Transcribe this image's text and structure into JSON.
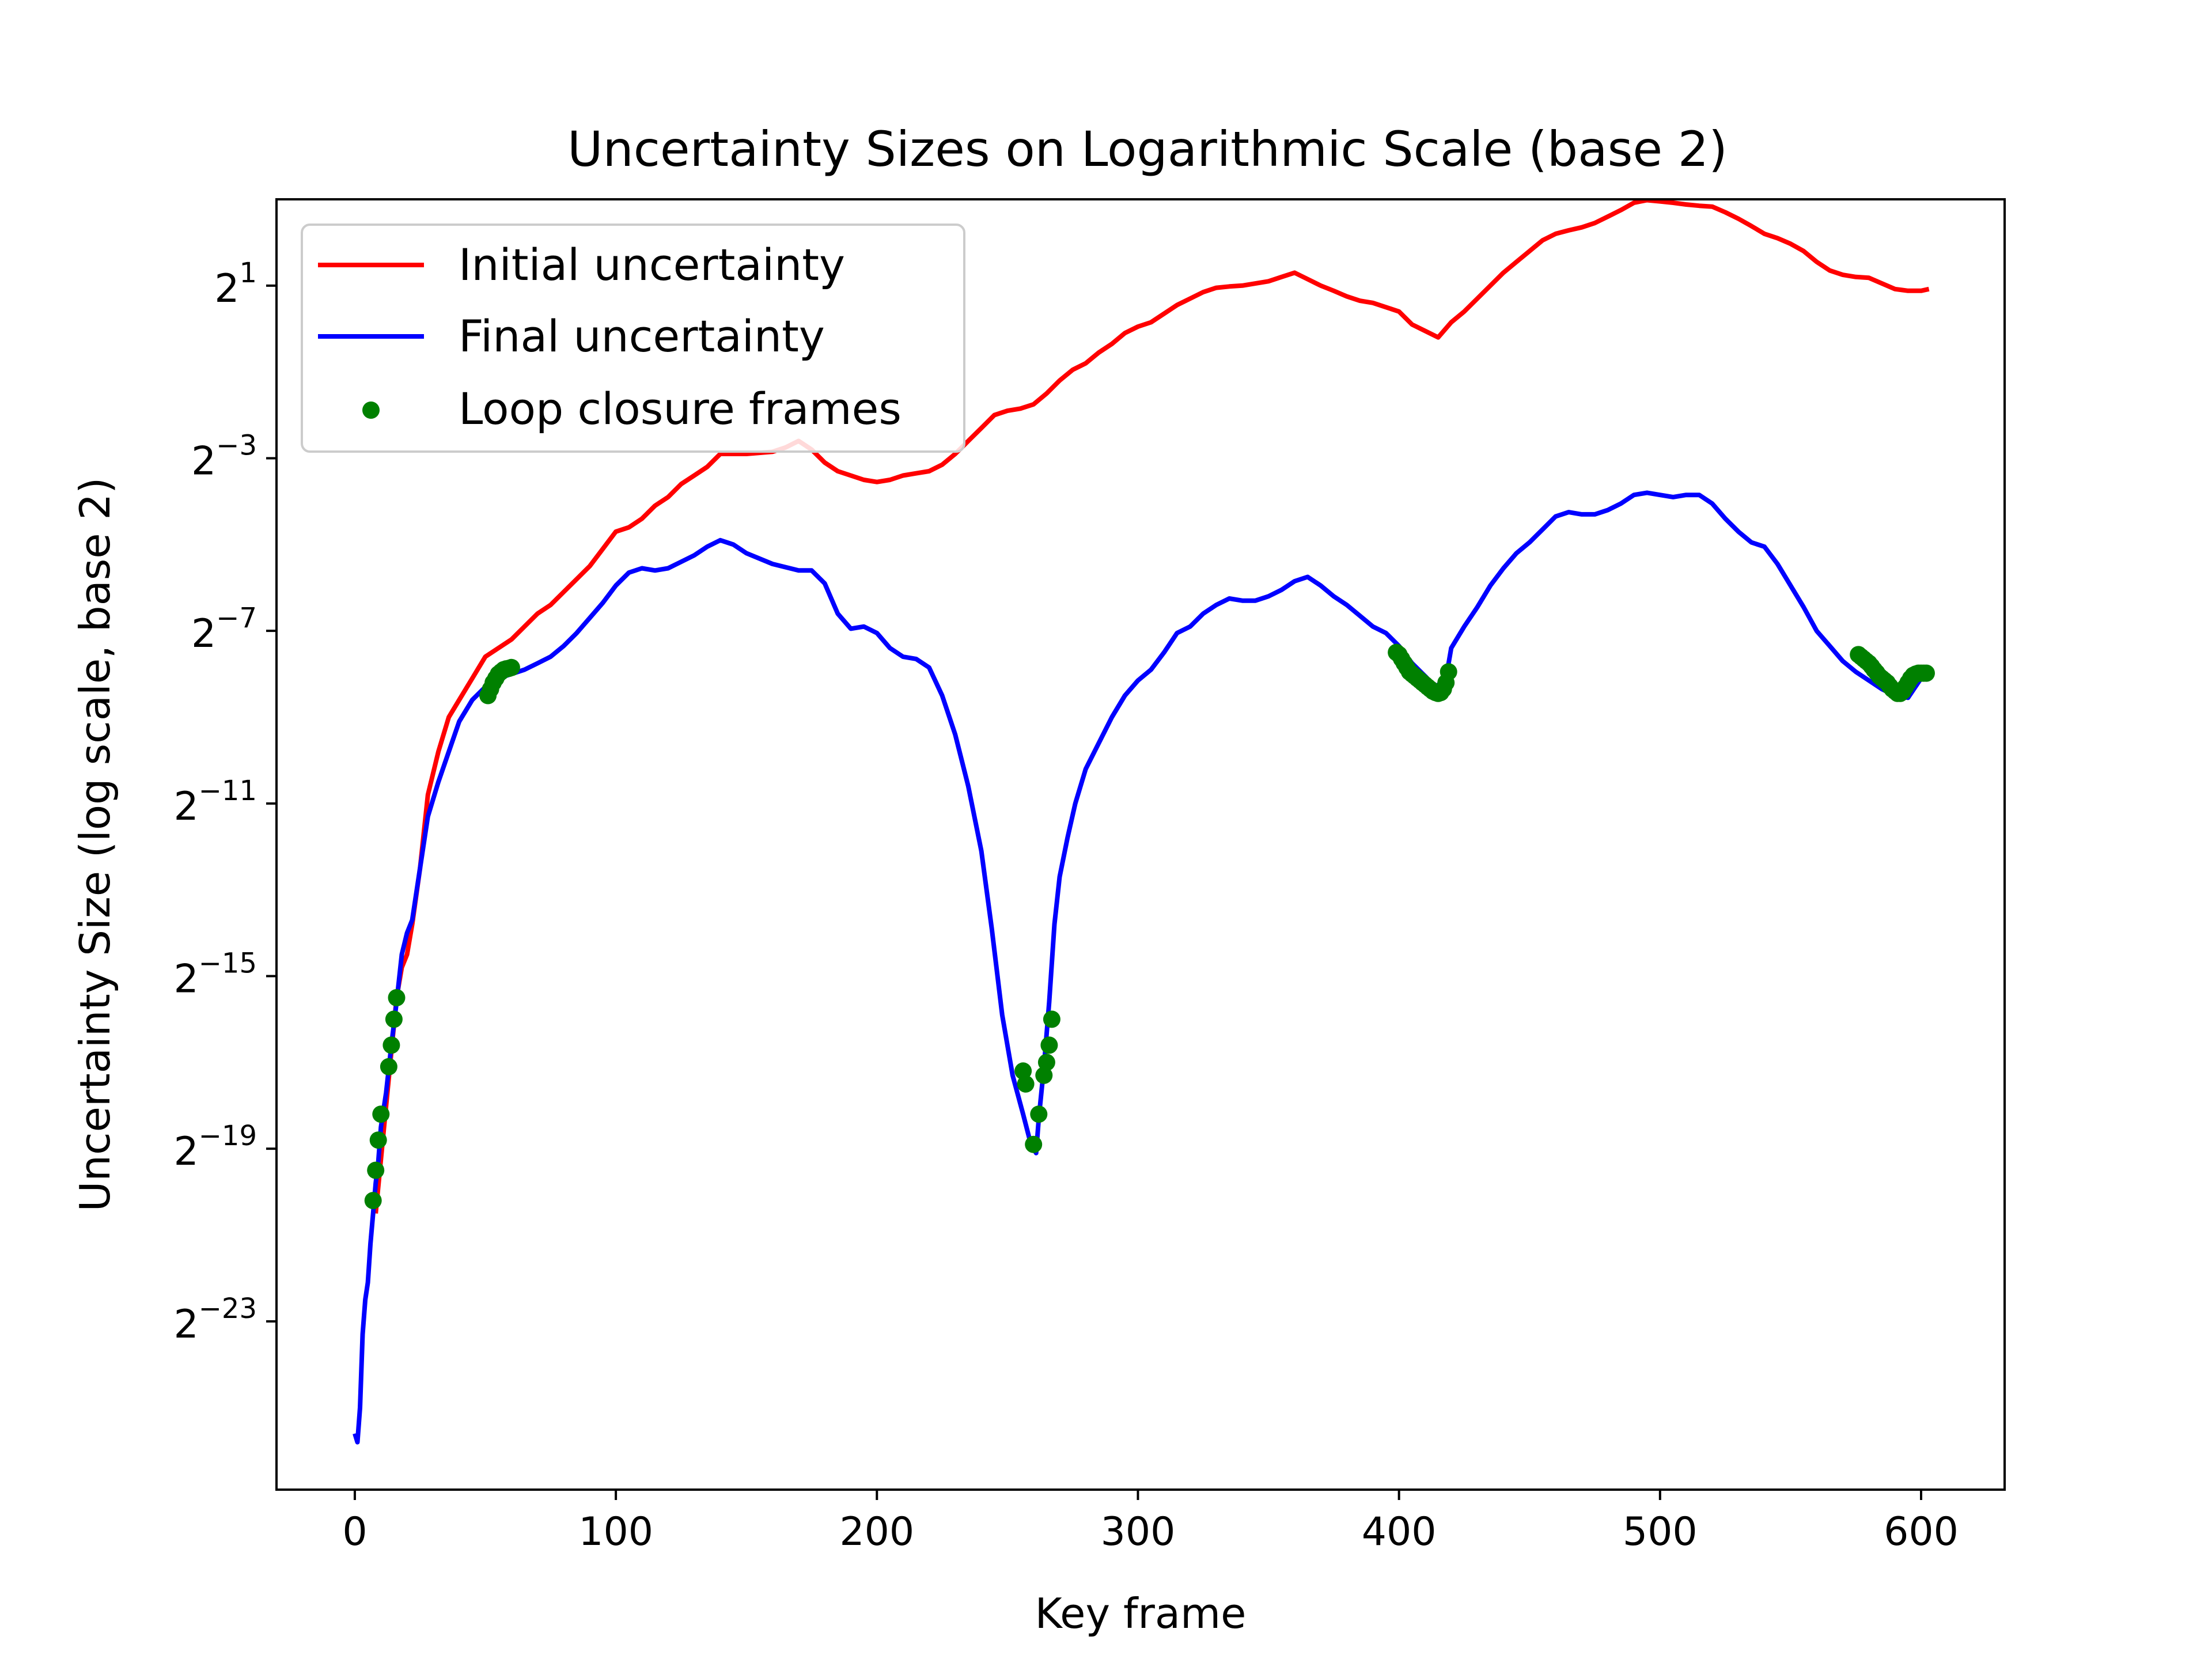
{
  "chart_data": {
    "type": "line",
    "title": "Uncertainty Sizes on Logarithmic Scale (base 2)",
    "xlabel": "Key frame",
    "ylabel": "Uncertainty Size (log scale, base 2)",
    "xlim": [
      -30,
      632
    ],
    "ylim_log2": [
      -26.9,
      3.0
    ],
    "yscale": "log2",
    "xticks": [
      "0",
      "100",
      "200",
      "300",
      "400",
      "500",
      "600"
    ],
    "xtick_values": [
      0,
      100,
      200,
      300,
      400,
      500,
      600
    ],
    "yticks": [
      {
        "base": "2",
        "exp": "1",
        "value": 1
      },
      {
        "base": "2",
        "exp": "−3",
        "value": -3
      },
      {
        "base": "2",
        "exp": "−7",
        "value": -7
      },
      {
        "base": "2",
        "exp": "−11",
        "value": -11
      },
      {
        "base": "2",
        "exp": "−15",
        "value": -15
      },
      {
        "base": "2",
        "exp": "−19",
        "value": -19
      },
      {
        "base": "2",
        "exp": "−23",
        "value": -23
      }
    ],
    "legend_position": "upper-left",
    "series": [
      {
        "name": "Initial uncertainty",
        "color": "#ff0000",
        "marker": "line",
        "x": [
          8,
          12,
          16,
          18,
          20,
          22,
          25,
          28,
          32,
          36,
          40,
          45,
          50,
          55,
          60,
          65,
          70,
          75,
          80,
          85,
          90,
          95,
          100,
          105,
          110,
          115,
          120,
          125,
          130,
          135,
          140,
          150,
          160,
          165,
          170,
          175,
          180,
          185,
          190,
          195,
          200,
          205,
          210,
          215,
          220,
          225,
          230,
          235,
          240,
          245,
          250,
          255,
          260,
          265,
          270,
          275,
          280,
          285,
          290,
          295,
          300,
          305,
          310,
          315,
          320,
          325,
          330,
          335,
          340,
          345,
          350,
          355,
          360,
          365,
          370,
          375,
          380,
          385,
          390,
          395,
          400,
          405,
          410,
          415,
          420,
          425,
          430,
          435,
          440,
          445,
          450,
          455,
          460,
          465,
          470,
          475,
          480,
          485,
          490,
          495,
          500,
          505,
          510,
          515,
          520,
          525,
          530,
          535,
          540,
          545,
          550,
          555,
          560,
          565,
          570,
          575,
          580,
          585,
          590,
          595,
          600,
          603
        ],
        "values": [
          -20.5,
          -18.0,
          -15.5,
          -14.8,
          -14.5,
          -13.8,
          -12.5,
          -10.8,
          -9.8,
          -9.0,
          -8.6,
          -8.1,
          -7.6,
          -7.4,
          -7.2,
          -6.9,
          -6.6,
          -6.4,
          -6.1,
          -5.8,
          -5.5,
          -5.1,
          -4.7,
          -4.6,
          -4.4,
          -4.1,
          -3.9,
          -3.6,
          -3.4,
          -3.2,
          -2.9,
          -2.9,
          -2.85,
          -2.75,
          -2.6,
          -2.8,
          -3.1,
          -3.3,
          -3.4,
          -3.5,
          -3.55,
          -3.5,
          -3.4,
          -3.35,
          -3.3,
          -3.15,
          -2.9,
          -2.6,
          -2.3,
          -2.0,
          -1.9,
          -1.85,
          -1.75,
          -1.5,
          -1.2,
          -0.95,
          -0.8,
          -0.55,
          -0.35,
          -0.1,
          0.05,
          0.15,
          0.35,
          0.55,
          0.7,
          0.85,
          0.95,
          0.98,
          1.0,
          1.05,
          1.1,
          1.2,
          1.3,
          1.15,
          1.0,
          0.88,
          0.75,
          0.65,
          0.6,
          0.5,
          0.4,
          0.1,
          -0.05,
          -0.2,
          0.15,
          0.4,
          0.7,
          1.0,
          1.3,
          1.55,
          1.8,
          2.05,
          2.2,
          2.28,
          2.35,
          2.45,
          2.6,
          2.75,
          2.92,
          2.98,
          2.95,
          2.92,
          2.88,
          2.85,
          2.83,
          2.7,
          2.55,
          2.38,
          2.2,
          2.1,
          1.97,
          1.8,
          1.55,
          1.35,
          1.25,
          1.2,
          1.18,
          1.05,
          0.92,
          0.88,
          0.88,
          0.92
        ]
      },
      {
        "name": "Final uncertainty",
        "color": "#0000ff",
        "marker": "line",
        "x": [
          0,
          1,
          2,
          3,
          4,
          5,
          6,
          7,
          8,
          9,
          10,
          12,
          14,
          16,
          18,
          20,
          22,
          25,
          28,
          32,
          36,
          40,
          45,
          50,
          55,
          60,
          65,
          70,
          75,
          80,
          85,
          90,
          95,
          100,
          105,
          110,
          115,
          120,
          125,
          130,
          135,
          140,
          145,
          150,
          160,
          170,
          175,
          180,
          185,
          190,
          195,
          200,
          205,
          210,
          215,
          220,
          225,
          230,
          235,
          240,
          244,
          248,
          252,
          256,
          259,
          261,
          262,
          264,
          266,
          268,
          270,
          273,
          276,
          280,
          285,
          290,
          295,
          300,
          305,
          310,
          315,
          320,
          325,
          330,
          335,
          340,
          345,
          350,
          355,
          360,
          365,
          370,
          375,
          380,
          385,
          390,
          395,
          400,
          405,
          410,
          414,
          418,
          420,
          425,
          430,
          435,
          440,
          445,
          450,
          455,
          460,
          465,
          470,
          475,
          480,
          485,
          490,
          495,
          500,
          505,
          510,
          515,
          520,
          525,
          530,
          535,
          540,
          545,
          550,
          555,
          560,
          565,
          570,
          575,
          580,
          585,
          590,
          595,
          600,
          603
        ],
        "values": [
          -25.6,
          -25.8,
          -25.0,
          -23.3,
          -22.5,
          -22.1,
          -21.2,
          -20.5,
          -19.8,
          -19.3,
          -18.5,
          -17.7,
          -16.6,
          -15.6,
          -14.5,
          -14.0,
          -13.7,
          -12.5,
          -11.3,
          -10.5,
          -9.8,
          -9.1,
          -8.6,
          -8.3,
          -8.1,
          -8.0,
          -7.9,
          -7.75,
          -7.6,
          -7.35,
          -7.05,
          -6.7,
          -6.35,
          -5.95,
          -5.65,
          -5.55,
          -5.6,
          -5.55,
          -5.4,
          -5.25,
          -5.05,
          -4.9,
          -5.0,
          -5.2,
          -5.45,
          -5.6,
          -5.6,
          -5.9,
          -6.6,
          -6.95,
          -6.9,
          -7.05,
          -7.4,
          -7.6,
          -7.65,
          -7.85,
          -8.5,
          -9.4,
          -10.6,
          -12.1,
          -13.9,
          -15.9,
          -17.3,
          -18.2,
          -18.9,
          -19.1,
          -18.3,
          -17.1,
          -15.6,
          -13.8,
          -12.7,
          -11.8,
          -11.0,
          -10.2,
          -9.6,
          -9.0,
          -8.5,
          -8.15,
          -7.9,
          -7.5,
          -7.05,
          -6.9,
          -6.6,
          -6.4,
          -6.25,
          -6.3,
          -6.3,
          -6.2,
          -6.05,
          -5.85,
          -5.75,
          -5.95,
          -6.2,
          -6.4,
          -6.65,
          -6.9,
          -7.05,
          -7.35,
          -7.75,
          -8.05,
          -8.3,
          -8.1,
          -7.4,
          -6.9,
          -6.45,
          -5.95,
          -5.55,
          -5.2,
          -4.95,
          -4.65,
          -4.35,
          -4.25,
          -4.3,
          -4.3,
          -4.2,
          -4.05,
          -3.85,
          -3.8,
          -3.85,
          -3.9,
          -3.85,
          -3.85,
          -4.05,
          -4.4,
          -4.7,
          -4.95,
          -5.05,
          -5.45,
          -5.95,
          -6.45,
          -7.0,
          -7.35,
          -7.7,
          -7.95,
          -8.15,
          -8.35,
          -8.5,
          -8.55,
          -8.1,
          -8.0
        ]
      },
      {
        "name": "Loop closure frames",
        "color": "#008000",
        "marker": "dot",
        "x": [
          7,
          8,
          9,
          10,
          13,
          14,
          15,
          16,
          51,
          52,
          53,
          54,
          55,
          56,
          57,
          58,
          59,
          60,
          256,
          257,
          260,
          262,
          264,
          265,
          266,
          267,
          399,
          400,
          401,
          402,
          403,
          404,
          405,
          406,
          407,
          408,
          409,
          410,
          411,
          412,
          413,
          414,
          415,
          416,
          417,
          418,
          419,
          576,
          577,
          578,
          579,
          580,
          581,
          582,
          583,
          584,
          585,
          586,
          587,
          588,
          589,
          590,
          591,
          592,
          593,
          594,
          595,
          596,
          597,
          598,
          599,
          600,
          601,
          602
        ],
        "values": [
          -20.2,
          -19.5,
          -18.8,
          -18.2,
          -17.1,
          -16.6,
          -16.0,
          -15.5,
          -8.5,
          -8.35,
          -8.2,
          -8.1,
          -8.0,
          -7.95,
          -7.9,
          -7.88,
          -7.87,
          -7.85,
          -17.2,
          -17.5,
          -18.9,
          -18.2,
          -17.3,
          -17.0,
          -16.6,
          -16.0,
          -7.5,
          -7.55,
          -7.65,
          -7.75,
          -7.85,
          -7.95,
          -8.0,
          -8.05,
          -8.1,
          -8.15,
          -8.2,
          -8.25,
          -8.3,
          -8.35,
          -8.4,
          -8.43,
          -8.45,
          -8.43,
          -8.35,
          -8.2,
          -7.95,
          -7.55,
          -7.6,
          -7.65,
          -7.7,
          -7.75,
          -7.82,
          -7.9,
          -7.97,
          -8.05,
          -8.1,
          -8.15,
          -8.2,
          -8.28,
          -8.35,
          -8.4,
          -8.45,
          -8.45,
          -8.4,
          -8.3,
          -8.2,
          -8.1,
          -8.03,
          -8.0,
          -7.98,
          -7.98,
          -7.98,
          -7.98
        ]
      }
    ]
  }
}
